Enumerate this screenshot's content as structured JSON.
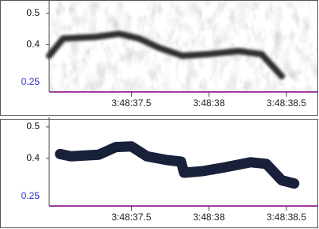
{
  "chart_data": [
    {
      "type": "line",
      "x": [
        36.97,
        37.06,
        37.27,
        37.42,
        37.55,
        37.68,
        37.83,
        37.99,
        38.19,
        38.34,
        38.47
      ],
      "series": [
        {
          "color": "#2e2e2e",
          "values": [
            0.365,
            0.42,
            0.425,
            0.435,
            0.42,
            0.39,
            0.365,
            0.37,
            0.38,
            0.37,
            0.3
          ]
        }
      ],
      "xlim": [
        36.97,
        38.7
      ],
      "xticks": [
        {
          "value": 37.5,
          "label": "3:48:37.5"
        },
        {
          "value": 38,
          "label": "3:48:38"
        },
        {
          "value": 38.5,
          "label": "3:48:38.5"
        }
      ],
      "ylim": [
        0.25,
        0.53
      ],
      "yticks": [
        0.4,
        0.5
      ]
    },
    {
      "type": "line",
      "x": [
        37.04,
        37.11,
        37.29,
        37.4,
        37.5,
        37.6,
        37.73,
        37.82,
        37.84,
        37.96,
        38.09,
        38.27,
        38.37,
        38.47,
        38.55
      ],
      "series": [
        {
          "color": "#18203a",
          "values": [
            0.414,
            0.407,
            0.412,
            0.436,
            0.438,
            0.407,
            0.395,
            0.39,
            0.355,
            0.36,
            0.371,
            0.388,
            0.383,
            0.331,
            0.321
          ]
        }
      ],
      "xlim": [
        36.97,
        38.7
      ],
      "xticks": [
        {
          "value": 37.5,
          "label": "3:48:37.5"
        },
        {
          "value": 38,
          "label": "3:48:38"
        },
        {
          "value": 38.5,
          "label": "3:48:38.5"
        }
      ],
      "ylim": [
        0.25,
        0.52
      ],
      "yticks": [
        0.4,
        0.5
      ]
    }
  ]
}
